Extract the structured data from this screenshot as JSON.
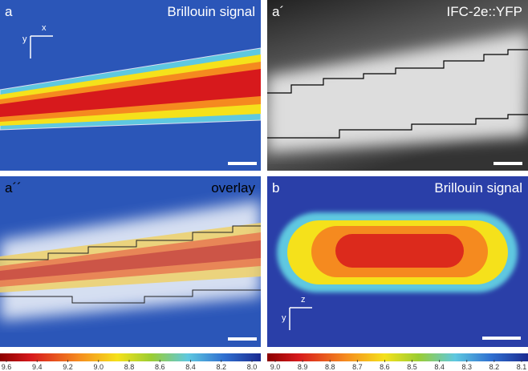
{
  "panels": [
    {
      "label": "a",
      "title": "Brillouin signal",
      "axes": [
        "x",
        "y"
      ]
    },
    {
      "label": "a´",
      "title": "IFC-2e::YFP"
    },
    {
      "label": "a´´",
      "title": "overlay"
    },
    {
      "label": "b",
      "title": "Brillouin signal",
      "axes": [
        "z",
        "y"
      ]
    }
  ],
  "colorbars": [
    {
      "ticks": [
        "9.6",
        "9.4",
        "9.2",
        "9.0",
        "8.8",
        "8.6",
        "8.4",
        "8.2",
        "8.0"
      ]
    },
    {
      "ticks": [
        "9.0",
        "8.9",
        "8.8",
        "8.7",
        "8.6",
        "8.5",
        "8.4",
        "8.3",
        "8.2",
        "8.1"
      ]
    }
  ]
}
